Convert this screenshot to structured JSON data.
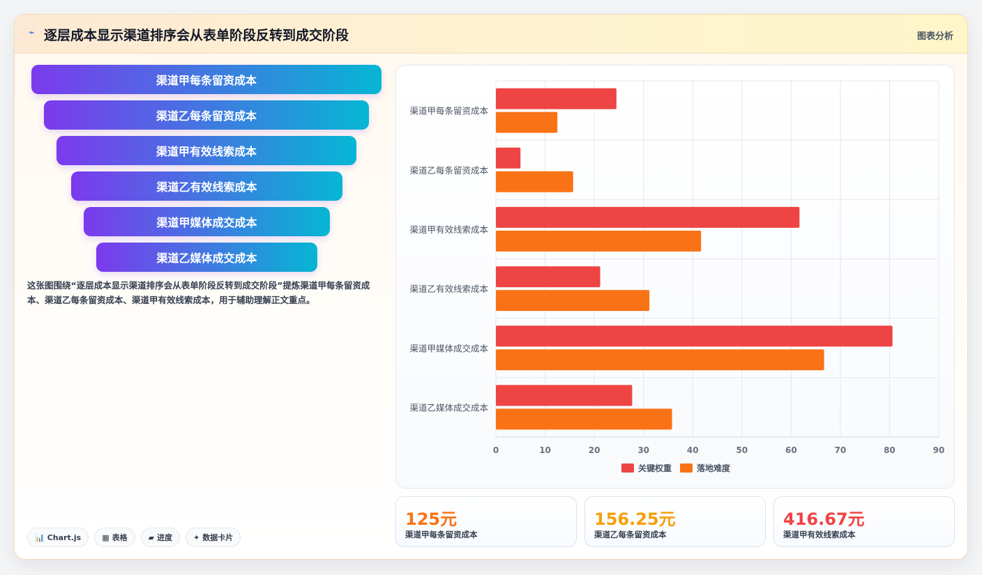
{
  "header": {
    "title": "逐层成本显示渠道排序会从表单阶段反转到成交阶段",
    "tag": "图表分析",
    "icon": "chart-trend-icon"
  },
  "funnel": [
    "渠道甲每条留资成本",
    "渠道乙每条留资成本",
    "渠道甲有效线索成本",
    "渠道乙有效线索成本",
    "渠道甲媒体成交成本",
    "渠道乙媒体成交成本"
  ],
  "description": "这张图围绕“逐层成本显示渠道排序会从表单阶段反转到成交阶段”提炼渠道甲每条留资成本、渠道乙每条留资成本、渠道甲有效线索成本，用于辅助理解正文重点。",
  "chips": [
    {
      "icon": "📊",
      "label": "Chart.js"
    },
    {
      "icon": "▦",
      "label": "表格"
    },
    {
      "icon": "▰",
      "label": "进度"
    },
    {
      "icon": "✦",
      "label": "数据卡片"
    }
  ],
  "kpis": [
    {
      "value": "125元",
      "label": "渠道甲每条留资成本",
      "color": "#f97316"
    },
    {
      "value": "156.25元",
      "label": "渠道乙每条留资成本",
      "color": "#f59e0b"
    },
    {
      "value": "416.67元",
      "label": "渠道甲有效线索成本",
      "color": "#ef4444"
    }
  ],
  "chart_data": {
    "type": "bar",
    "orientation": "horizontal",
    "categories": [
      "渠道甲每条留资成本",
      "渠道乙每条留资成本",
      "渠道甲有效线索成本",
      "渠道乙有效线索成本",
      "渠道甲媒体成交成本",
      "渠道乙媒体成交成本"
    ],
    "series": [
      {
        "name": "关键权重",
        "color": "#ef4444",
        "values": [
          24.5,
          5,
          61.7,
          21.2,
          80.6,
          27.7
        ]
      },
      {
        "name": "落地难度",
        "color": "#f97316",
        "values": [
          12.5,
          15.7,
          41.7,
          31.2,
          66.7,
          35.8
        ]
      }
    ],
    "xlim": [
      0,
      90
    ],
    "xticks": [
      "0",
      "10",
      "20",
      "30",
      "40",
      "50",
      "60",
      "70",
      "80",
      "90"
    ],
    "grid": true,
    "legend": "bottom"
  }
}
